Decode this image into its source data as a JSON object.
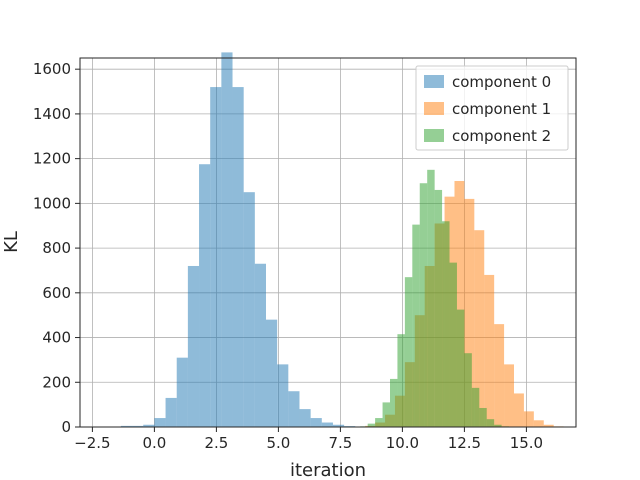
{
  "chart_data": {
    "type": "bar",
    "subtype": "overlapping-histogram",
    "title": "",
    "xlabel": "iteration",
    "ylabel": "KL",
    "xlim": [
      -3.0,
      17.0
    ],
    "ylim": [
      0,
      1650
    ],
    "xticks": [
      -2.5,
      0.0,
      2.5,
      5.0,
      7.5,
      10.0,
      12.5,
      15.0
    ],
    "xtick_labels": [
      "−2.5",
      "0.0",
      "2.5",
      "5.0",
      "7.5",
      "10.0",
      "12.5",
      "15.0"
    ],
    "yticks": [
      0,
      200,
      400,
      600,
      800,
      1000,
      1200,
      1400,
      1600
    ],
    "ytick_labels": [
      "0",
      "200",
      "400",
      "600",
      "800",
      "1000",
      "1200",
      "1400",
      "1600"
    ],
    "grid": true,
    "legend_position": "top-right",
    "series": [
      {
        "name": "component 0",
        "color": "#1f77b4",
        "alpha": 0.5,
        "bins": [
          [
            -1.8,
            2
          ],
          [
            -1.35,
            5
          ],
          [
            -0.9,
            5
          ],
          [
            -0.45,
            10
          ],
          [
            0,
            40
          ],
          [
            0.45,
            130
          ],
          [
            0.9,
            310
          ],
          [
            1.35,
            720
          ],
          [
            1.8,
            1175
          ],
          [
            2.25,
            1520
          ],
          [
            2.7,
            1675
          ],
          [
            3.15,
            1520
          ],
          [
            3.6,
            1050
          ],
          [
            4.05,
            730
          ],
          [
            4.5,
            480
          ],
          [
            4.95,
            280
          ],
          [
            5.4,
            160
          ],
          [
            5.85,
            80
          ],
          [
            6.3,
            40
          ],
          [
            6.75,
            20
          ],
          [
            7.2,
            10
          ],
          [
            7.65,
            4
          ],
          [
            8.1,
            2
          ]
        ],
        "bin_width": 0.45
      },
      {
        "name": "component 1",
        "color": "#ff7f0e",
        "alpha": 0.5,
        "bins": [
          [
            8.5,
            5
          ],
          [
            8.9,
            20
          ],
          [
            9.3,
            55
          ],
          [
            9.7,
            140
          ],
          [
            10.1,
            290
          ],
          [
            10.5,
            500
          ],
          [
            10.9,
            720
          ],
          [
            11.3,
            910
          ],
          [
            11.7,
            1030
          ],
          [
            12.1,
            1100
          ],
          [
            12.5,
            1020
          ],
          [
            12.9,
            880
          ],
          [
            13.3,
            680
          ],
          [
            13.7,
            460
          ],
          [
            14.1,
            280
          ],
          [
            14.5,
            150
          ],
          [
            14.9,
            70
          ],
          [
            15.3,
            30
          ],
          [
            15.7,
            10
          ],
          [
            16.1,
            3
          ]
        ],
        "bin_width": 0.4
      },
      {
        "name": "component 2",
        "color": "#2ca02c",
        "alpha": 0.5,
        "bins": [
          [
            8.3,
            3
          ],
          [
            8.6,
            15
          ],
          [
            8.9,
            40
          ],
          [
            9.2,
            110
          ],
          [
            9.5,
            215
          ],
          [
            9.8,
            415
          ],
          [
            10.1,
            670
          ],
          [
            10.4,
            905
          ],
          [
            10.7,
            1090
          ],
          [
            11.0,
            1150
          ],
          [
            11.3,
            1060
          ],
          [
            11.6,
            920
          ],
          [
            11.9,
            735
          ],
          [
            12.2,
            525
          ],
          [
            12.5,
            330
          ],
          [
            12.8,
            175
          ],
          [
            13.1,
            85
          ],
          [
            13.4,
            35
          ],
          [
            13.7,
            10
          ],
          [
            14.0,
            3
          ]
        ],
        "bin_width": 0.3
      }
    ]
  }
}
